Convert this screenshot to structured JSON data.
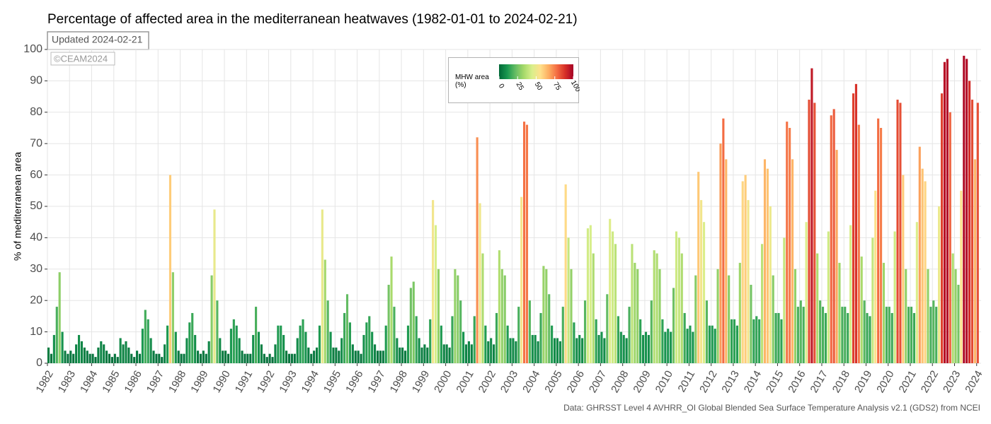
{
  "chart_data": {
    "type": "bar",
    "title": "Percentage of affected area in the mediterranean heatwaves (1982-01-01 to 2024-02-21)",
    "subtitle": "Updated 2024-02-21",
    "watermark": "©CEAM2024",
    "ylabel": "% of mediterranean area",
    "caption": "Data: GHRSST Level 4 AVHRR_OI Global Blended Sea Surface Temperature Analysis v2.1 (GDS2) from NCEI",
    "colorbar_title": "MHW area (%)",
    "colorscale": [
      "#006837",
      "#1a9850",
      "#66bd63",
      "#a6d96a",
      "#d9ef8b",
      "#fee08b",
      "#fdae61",
      "#f46d43",
      "#d73027",
      "#a50026"
    ],
    "colorlim": [
      0,
      100
    ],
    "colorbar_ticks": [
      0,
      25,
      50,
      75,
      100
    ],
    "grid": true,
    "xlim": [
      1982,
      2024.2
    ],
    "xticks": [
      1982,
      1983,
      1984,
      1985,
      1986,
      1987,
      1988,
      1989,
      1990,
      1991,
      1992,
      1993,
      1994,
      1995,
      1996,
      1997,
      1998,
      1999,
      2000,
      2001,
      2002,
      2003,
      2004,
      2005,
      2006,
      2007,
      2008,
      2009,
      2010,
      2011,
      2012,
      2013,
      2014,
      2015,
      2016,
      2017,
      2018,
      2019,
      2020,
      2021,
      2022,
      2023,
      2024
    ],
    "ylim": [
      0,
      100
    ],
    "yticks": [
      0,
      10,
      20,
      30,
      40,
      50,
      60,
      70,
      80,
      90,
      100
    ],
    "x": [
      1982,
      1982.125,
      1982.25,
      1982.375,
      1982.5,
      1982.625,
      1982.75,
      1982.875,
      1983,
      1983.125,
      1983.25,
      1983.375,
      1983.5,
      1983.625,
      1983.75,
      1983.875,
      1984,
      1984.125,
      1984.25,
      1984.375,
      1984.5,
      1984.625,
      1984.75,
      1984.875,
      1985,
      1985.125,
      1985.25,
      1985.375,
      1985.5,
      1985.625,
      1985.75,
      1985.875,
      1986,
      1986.125,
      1986.25,
      1986.375,
      1986.5,
      1986.625,
      1986.75,
      1986.875,
      1987,
      1987.125,
      1987.25,
      1987.375,
      1987.5,
      1987.625,
      1987.75,
      1987.875,
      1988,
      1988.125,
      1988.25,
      1988.375,
      1988.5,
      1988.625,
      1988.75,
      1988.875,
      1989,
      1989.125,
      1989.25,
      1989.375,
      1989.5,
      1989.625,
      1989.75,
      1989.875,
      1990,
      1990.125,
      1990.25,
      1990.375,
      1990.5,
      1990.625,
      1990.75,
      1990.875,
      1991,
      1991.125,
      1991.25,
      1991.375,
      1991.5,
      1991.625,
      1991.75,
      1991.875,
      1992,
      1992.125,
      1992.25,
      1992.375,
      1992.5,
      1992.625,
      1992.75,
      1992.875,
      1993,
      1993.125,
      1993.25,
      1993.375,
      1993.5,
      1993.625,
      1993.75,
      1993.875,
      1994,
      1994.125,
      1994.25,
      1994.375,
      1994.5,
      1994.625,
      1994.75,
      1994.875,
      1995,
      1995.125,
      1995.25,
      1995.375,
      1995.5,
      1995.625,
      1995.75,
      1995.875,
      1996,
      1996.125,
      1996.25,
      1996.375,
      1996.5,
      1996.625,
      1996.75,
      1996.875,
      1997,
      1997.125,
      1997.25,
      1997.375,
      1997.5,
      1997.625,
      1997.75,
      1997.875,
      1998,
      1998.125,
      1998.25,
      1998.375,
      1998.5,
      1998.625,
      1998.75,
      1998.875,
      1999,
      1999.125,
      1999.25,
      1999.375,
      1999.5,
      1999.625,
      1999.75,
      1999.875,
      2000,
      2000.125,
      2000.25,
      2000.375,
      2000.5,
      2000.625,
      2000.75,
      2000.875,
      2001,
      2001.125,
      2001.25,
      2001.375,
      2001.5,
      2001.625,
      2001.75,
      2001.875,
      2002,
      2002.125,
      2002.25,
      2002.375,
      2002.5,
      2002.625,
      2002.75,
      2002.875,
      2003,
      2003.125,
      2003.25,
      2003.375,
      2003.5,
      2003.625,
      2003.75,
      2003.875,
      2004,
      2004.125,
      2004.25,
      2004.375,
      2004.5,
      2004.625,
      2004.75,
      2004.875,
      2005,
      2005.125,
      2005.25,
      2005.375,
      2005.5,
      2005.625,
      2005.75,
      2005.875,
      2006,
      2006.125,
      2006.25,
      2006.375,
      2006.5,
      2006.625,
      2006.75,
      2006.875,
      2007,
      2007.125,
      2007.25,
      2007.375,
      2007.5,
      2007.625,
      2007.75,
      2007.875,
      2008,
      2008.125,
      2008.25,
      2008.375,
      2008.5,
      2008.625,
      2008.75,
      2008.875,
      2009,
      2009.125,
      2009.25,
      2009.375,
      2009.5,
      2009.625,
      2009.75,
      2009.875,
      2010,
      2010.125,
      2010.25,
      2010.375,
      2010.5,
      2010.625,
      2010.75,
      2010.875,
      2011,
      2011.125,
      2011.25,
      2011.375,
      2011.5,
      2011.625,
      2011.75,
      2011.875,
      2012,
      2012.125,
      2012.25,
      2012.375,
      2012.5,
      2012.625,
      2012.75,
      2012.875,
      2013,
      2013.125,
      2013.25,
      2013.375,
      2013.5,
      2013.625,
      2013.75,
      2013.875,
      2014,
      2014.125,
      2014.25,
      2014.375,
      2014.5,
      2014.625,
      2014.75,
      2014.875,
      2015,
      2015.125,
      2015.25,
      2015.375,
      2015.5,
      2015.625,
      2015.75,
      2015.875,
      2016,
      2016.125,
      2016.25,
      2016.375,
      2016.5,
      2016.625,
      2016.75,
      2016.875,
      2017,
      2017.125,
      2017.25,
      2017.375,
      2017.5,
      2017.625,
      2017.75,
      2017.875,
      2018,
      2018.125,
      2018.25,
      2018.375,
      2018.5,
      2018.625,
      2018.75,
      2018.875,
      2019,
      2019.125,
      2019.25,
      2019.375,
      2019.5,
      2019.625,
      2019.75,
      2019.875,
      2020,
      2020.125,
      2020.25,
      2020.375,
      2020.5,
      2020.625,
      2020.75,
      2020.875,
      2021,
      2021.125,
      2021.25,
      2021.375,
      2021.5,
      2021.625,
      2021.75,
      2021.875,
      2022,
      2022.125,
      2022.25,
      2022.375,
      2022.5,
      2022.625,
      2022.75,
      2022.875,
      2023,
      2023.125,
      2023.25,
      2023.375,
      2023.5,
      2023.625,
      2023.75,
      2023.875,
      2024
    ],
    "values": [
      5,
      3,
      9,
      18,
      29,
      10,
      4,
      3,
      4,
      3,
      6,
      9,
      7,
      5,
      4,
      3,
      3,
      2,
      5,
      7,
      6,
      4,
      3,
      2,
      3,
      2,
      8,
      6,
      7,
      5,
      3,
      2,
      4,
      3,
      11,
      17,
      14,
      8,
      4,
      3,
      3,
      2,
      6,
      12,
      60,
      29,
      10,
      4,
      3,
      3,
      8,
      13,
      16,
      9,
      4,
      3,
      4,
      3,
      7,
      28,
      49,
      20,
      8,
      4,
      4,
      3,
      11,
      14,
      12,
      8,
      4,
      3,
      3,
      3,
      9,
      18,
      10,
      6,
      3,
      2,
      3,
      2,
      6,
      12,
      12,
      9,
      4,
      3,
      3,
      3,
      8,
      12,
      14,
      10,
      5,
      3,
      4,
      5,
      12,
      49,
      33,
      20,
      10,
      5,
      5,
      4,
      8,
      16,
      22,
      13,
      6,
      4,
      4,
      3,
      9,
      13,
      15,
      10,
      6,
      4,
      4,
      4,
      12,
      25,
      34,
      18,
      8,
      5,
      5,
      4,
      12,
      24,
      26,
      15,
      8,
      5,
      6,
      5,
      14,
      52,
      44,
      30,
      12,
      6,
      6,
      5,
      15,
      30,
      28,
      20,
      10,
      6,
      7,
      6,
      15,
      72,
      51,
      35,
      12,
      7,
      8,
      6,
      16,
      36,
      30,
      28,
      12,
      8,
      8,
      7,
      18,
      53,
      77,
      76,
      20,
      9,
      9,
      7,
      16,
      31,
      30,
      22,
      12,
      8,
      8,
      7,
      18,
      57,
      40,
      30,
      13,
      8,
      9,
      8,
      20,
      43,
      44,
      35,
      14,
      9,
      10,
      8,
      22,
      46,
      42,
      38,
      15,
      10,
      9,
      8,
      18,
      38,
      32,
      30,
      14,
      9,
      10,
      9,
      20,
      36,
      35,
      30,
      14,
      10,
      11,
      10,
      24,
      42,
      40,
      35,
      16,
      11,
      12,
      10,
      28,
      61,
      52,
      45,
      20,
      12,
      12,
      11,
      30,
      70,
      78,
      65,
      28,
      14,
      14,
      12,
      32,
      58,
      60,
      52,
      25,
      14,
      15,
      14,
      38,
      65,
      62,
      50,
      28,
      16,
      16,
      14,
      40,
      77,
      75,
      65,
      30,
      18,
      20,
      18,
      45,
      84,
      94,
      83,
      35,
      20,
      18,
      16,
      42,
      79,
      81,
      68,
      32,
      18,
      18,
      16,
      44,
      86,
      89,
      76,
      34,
      20,
      16,
      15,
      40,
      55,
      78,
      75,
      32,
      18,
      18,
      16,
      42,
      84,
      83,
      60,
      30,
      18,
      18,
      16,
      45,
      69,
      62,
      58,
      30,
      18,
      20,
      18,
      50,
      86,
      96,
      97,
      80,
      35,
      30,
      25,
      55,
      98,
      97,
      90,
      84,
      65,
      83
    ]
  }
}
